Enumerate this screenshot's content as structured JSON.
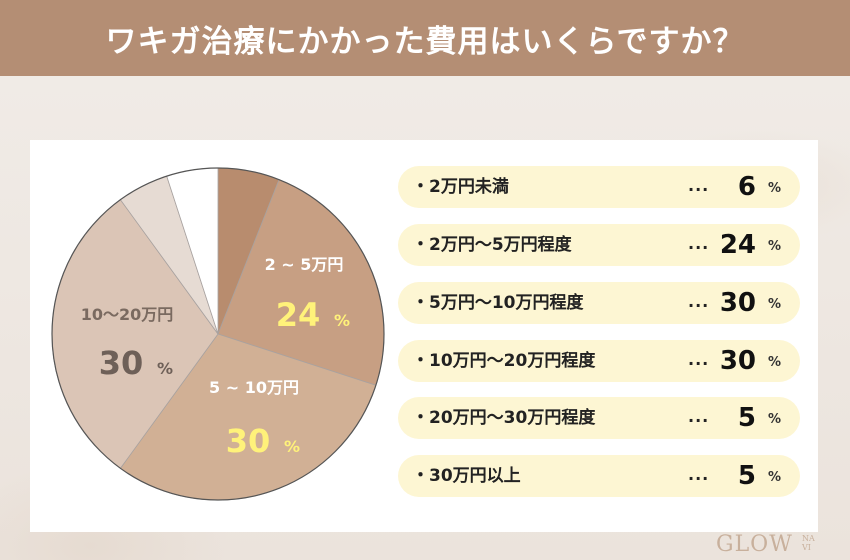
{
  "header": {
    "title": "ワキガ治療にかかった費用はいくらですか？"
  },
  "chart_data": {
    "type": "pie",
    "unit": "%",
    "slices": [
      {
        "label": "2万円未満",
        "value": 6,
        "color": "#b88c6e"
      },
      {
        "label": "2万円〜5万円程度",
        "value": 24,
        "color": "#c79f83"
      },
      {
        "label": "5万円〜10万円程度",
        "value": 30,
        "color": "#d1b095"
      },
      {
        "label": "10万円〜20万円程度",
        "value": 30,
        "color": "#dbc5b6"
      },
      {
        "label": "20万円〜30万円程度",
        "value": 5,
        "color": "#e6dbd3"
      },
      {
        "label": "30万円以上",
        "value": 5,
        "color": "#ffffff"
      }
    ],
    "pie_labels": [
      {
        "slice": 1,
        "text": "2 ~ 5万円",
        "value": "24",
        "unit": "%",
        "text_color": "#ffffff",
        "value_color": "#fff27a"
      },
      {
        "slice": 2,
        "text": "5 ~ 10万円",
        "value": "30",
        "unit": "%",
        "text_color": "#ffffff",
        "value_color": "#fff27a"
      },
      {
        "slice": 3,
        "text": "10〜20万円",
        "value": "30",
        "unit": "%",
        "text_color": "#7a6a60",
        "value_color": "#6e6058"
      }
    ],
    "legend": [
      {
        "bullet": "・",
        "label": "2万円未満",
        "dots": "...",
        "value": "6",
        "unit": "%"
      },
      {
        "bullet": "・",
        "label": "2万円〜5万円程度",
        "dots": "...",
        "value": "24",
        "unit": "%"
      },
      {
        "bullet": "・",
        "label": "5万円〜10万円程度",
        "dots": "...",
        "value": "30",
        "unit": "%"
      },
      {
        "bullet": "・",
        "label": "10万円〜20万円程度",
        "dots": "...",
        "value": "30",
        "unit": "%"
      },
      {
        "bullet": "・",
        "label": "20万円〜30万円程度",
        "dots": "...",
        "value": "5",
        "unit": "%"
      },
      {
        "bullet": "・",
        "label": "30万円以上",
        "dots": "...",
        "value": "5",
        "unit": "%"
      }
    ]
  },
  "logo": {
    "text": "GLOW",
    "sub_line1": "NA",
    "sub_line2": "VI"
  }
}
